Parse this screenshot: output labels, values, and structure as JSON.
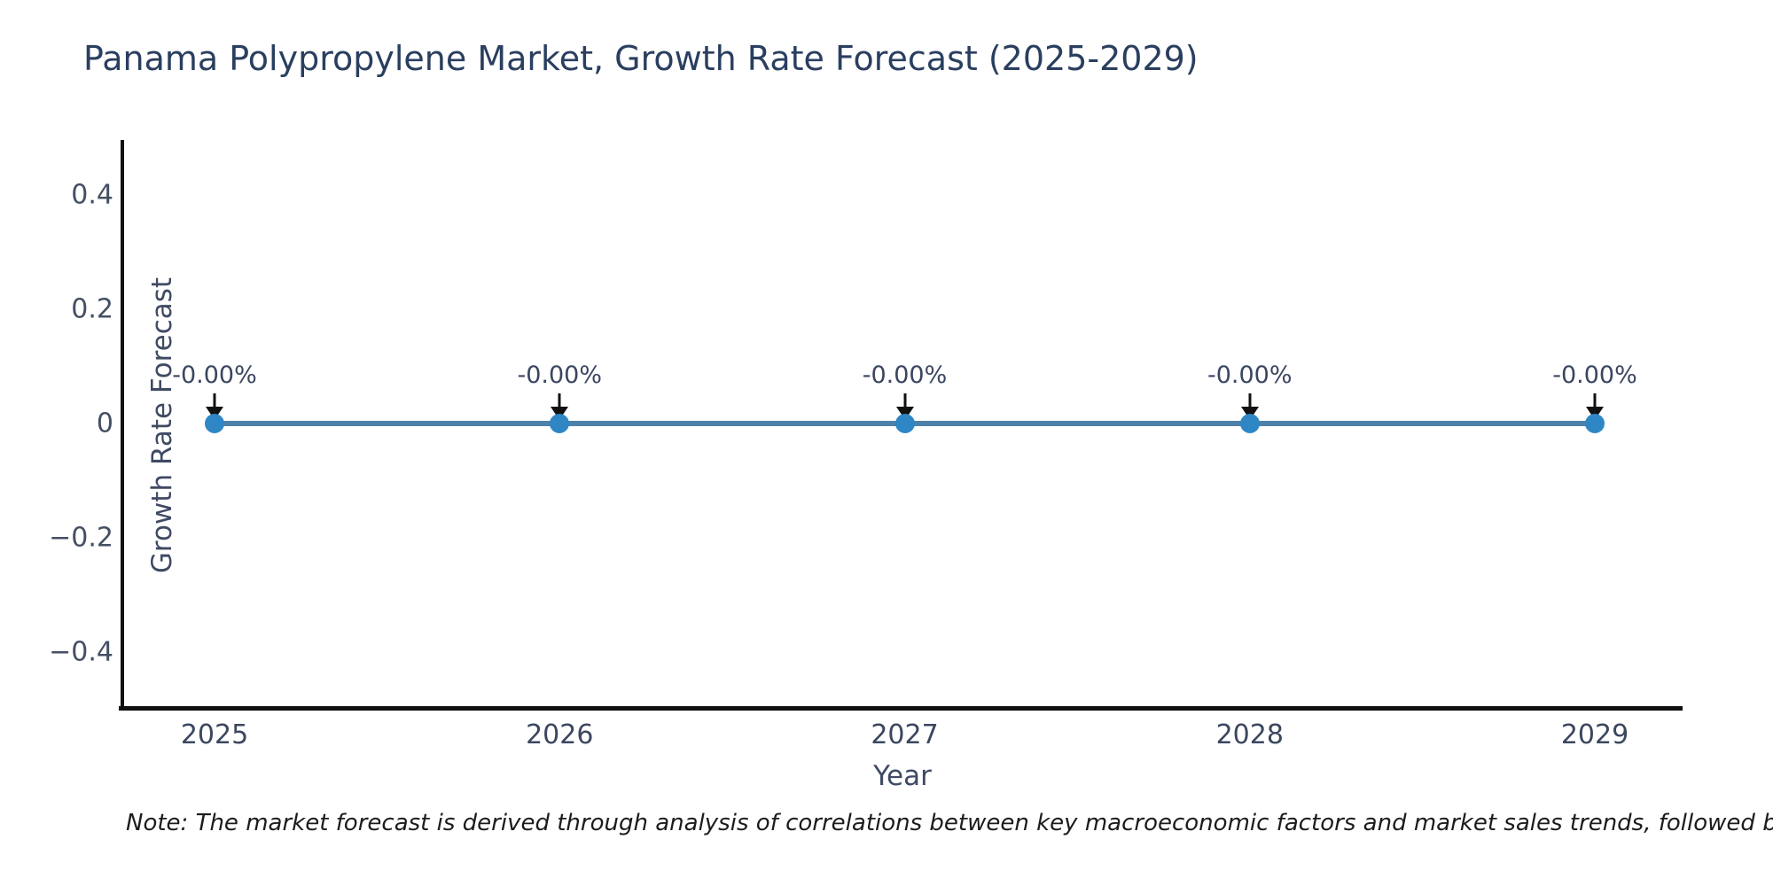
{
  "chart_data": {
    "type": "line",
    "title": "Panama Polypropylene Market, Growth Rate Forecast (2025-2029)",
    "xlabel": "Year",
    "ylabel": "Growth Rate Forecast",
    "x": [
      2025,
      2026,
      2027,
      2028,
      2029
    ],
    "series": [
      {
        "name": "Growth Rate Forecast",
        "values": [
          0,
          0,
          0,
          0,
          0
        ],
        "point_labels": [
          "-0.00%",
          "-0.00%",
          "-0.00%",
          "-0.00%",
          "-0.00%"
        ]
      }
    ],
    "xtick_labels": [
      "2025",
      "2026",
      "2027",
      "2028",
      "2029"
    ],
    "yticks": [
      0.4,
      0.2,
      0,
      -0.2,
      -0.4
    ],
    "ytick_labels": [
      "0.4",
      "0.2",
      "0",
      "−0.2",
      "−0.4"
    ],
    "ylim": [
      -0.5,
      0.49
    ],
    "grid": false,
    "legend_position": "none",
    "line_color": "#4e80a8",
    "marker_color": "#2e86c5",
    "annotation_arrow_color": "#111111"
  },
  "colors": {
    "title_text": "#2a3f5f",
    "axis_spine": "#111111",
    "tick_text": "#3f4a63"
  },
  "footnote": "Note: The market forecast is derived through analysis of correlations between key macroeconomic factors and market sales trends, followed by predictive modeling to project future sal"
}
